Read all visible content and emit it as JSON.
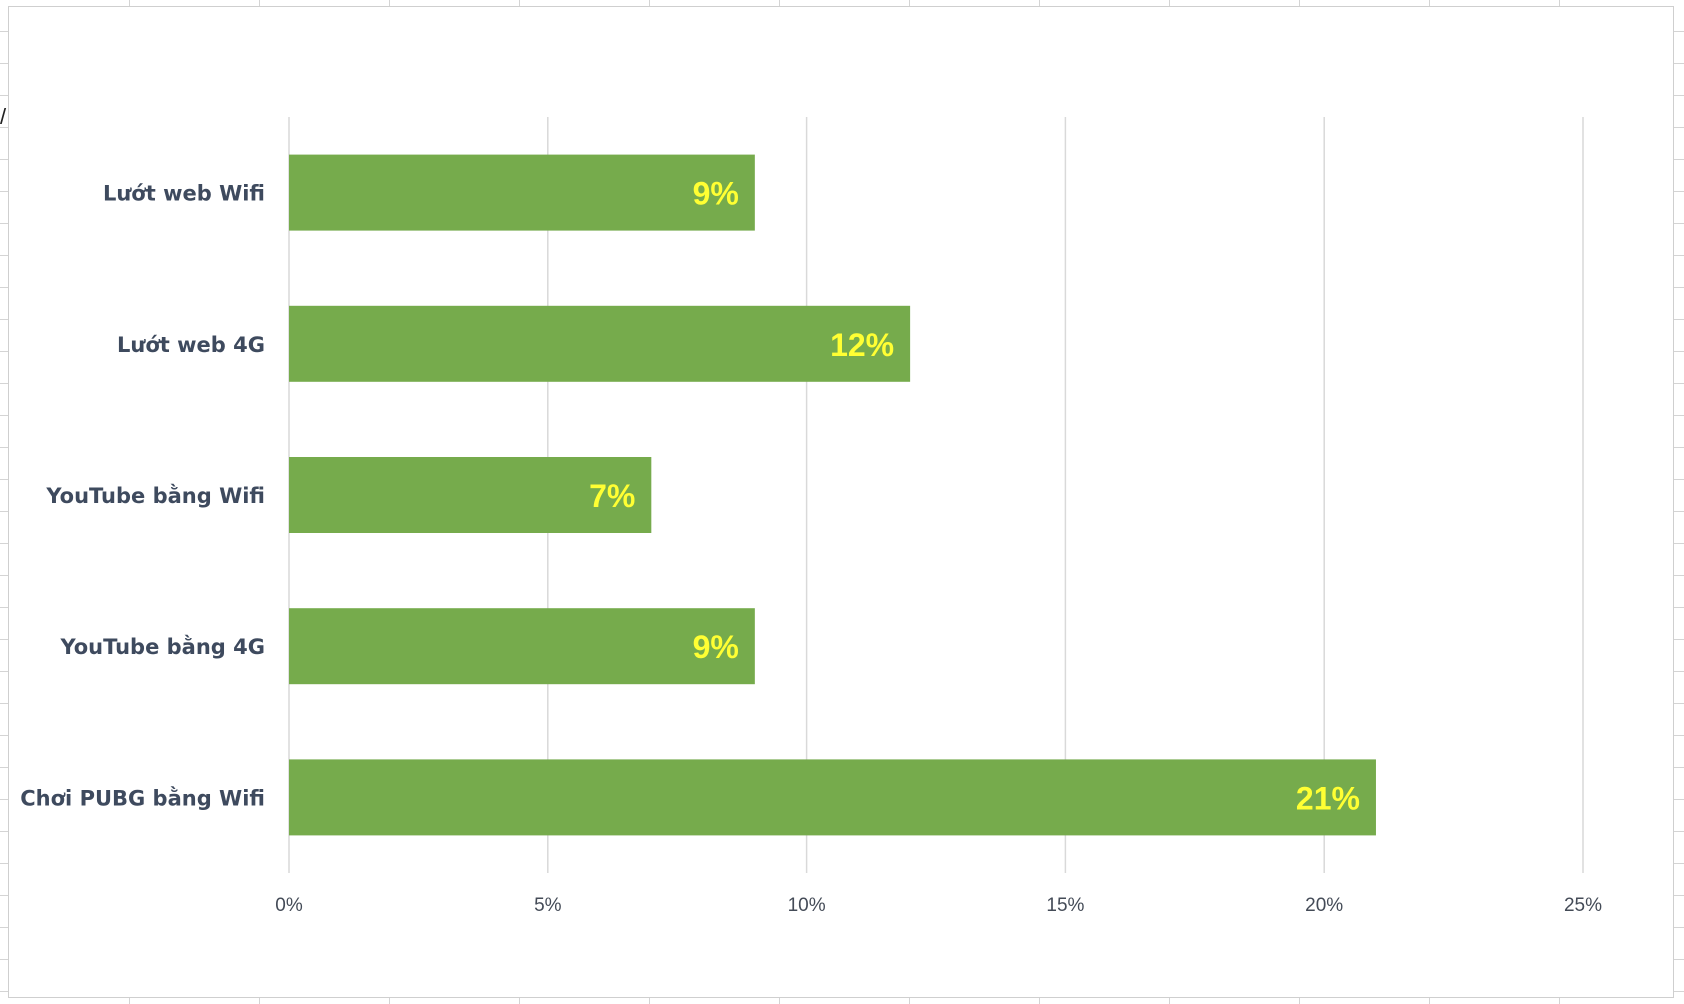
{
  "chart_data": {
    "type": "bar",
    "orientation": "horizontal",
    "categories": [
      "Lướt web Wifi",
      "Lướt web 4G",
      "YouTube bằng Wifi",
      "YouTube bằng 4G",
      "Chơi PUBG bằng Wifi"
    ],
    "values": [
      9,
      12,
      7,
      9,
      21
    ],
    "data_labels": [
      "9%",
      "12%",
      "7%",
      "9%",
      "21%"
    ],
    "x_ticks": [
      0,
      5,
      10,
      15,
      20,
      25
    ],
    "x_tick_labels": [
      "0%",
      "5%",
      "10%",
      "15%",
      "20%",
      "25%"
    ],
    "xlim": [
      0,
      25
    ],
    "title": "",
    "xlabel": "",
    "ylabel": "",
    "grid": "vertical",
    "legend": "none",
    "bar_color": "#76ab4c",
    "label_color": "#ffff33",
    "category_label_color": "#3e4a5e",
    "tick_label_color": "#444b57",
    "grid_color": "#d9d9d9"
  }
}
